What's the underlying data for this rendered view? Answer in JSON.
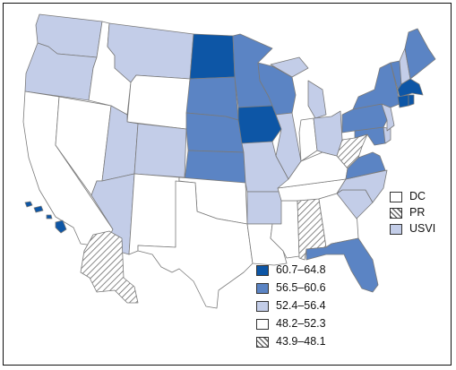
{
  "colors": {
    "dark": "#0d56a6",
    "mid": "#5b84c4",
    "light": "#c3cde8",
    "white": "#ffffff",
    "hatch": "#6a6a6a",
    "border": "#7a7a7a"
  },
  "legend_ranges": [
    {
      "label": "60.7–64.8",
      "class": "dark"
    },
    {
      "label": "56.5–60.6",
      "class": "mid"
    },
    {
      "label": "52.4–56.4",
      "class": "light"
    },
    {
      "label": "48.2–52.3",
      "class": "white"
    },
    {
      "label": "43.9–48.1",
      "class": "hatch"
    }
  ],
  "territories": [
    {
      "label": "DC",
      "class": "white"
    },
    {
      "label": "PR",
      "class": "hatch"
    },
    {
      "label": "USVI",
      "class": "light"
    }
  ],
  "state_classes": {
    "WA": "light",
    "OR": "light",
    "CA": "white",
    "NV": "white",
    "ID": "white",
    "MT": "light",
    "WY": "white",
    "UT": "light",
    "AZ": "light",
    "CO": "light",
    "NM": "white",
    "ND": "dark",
    "SD": "mid",
    "NE": "mid",
    "KS": "mid",
    "OK": "white",
    "TX": "white",
    "MN": "mid",
    "IA": "dark",
    "MO": "light",
    "AR": "light",
    "LA": "white",
    "WI": "mid",
    "IL": "light",
    "MS": "white",
    "AL": "hatch",
    "TN": "white",
    "KY": "white",
    "IN": "white",
    "MI": "light",
    "OH": "light",
    "GA": "white",
    "FL": "mid",
    "SC": "light",
    "NC": "light",
    "VA": "mid",
    "WV": "hatch",
    "MD": "mid",
    "DE": "light",
    "PA": "mid",
    "NJ": "light",
    "NY": "mid",
    "CT": "dark",
    "RI": "dark",
    "MA": "dark",
    "VT": "mid",
    "NH": "light",
    "ME": "mid",
    "AK": "hatch",
    "HI": "dark"
  }
}
